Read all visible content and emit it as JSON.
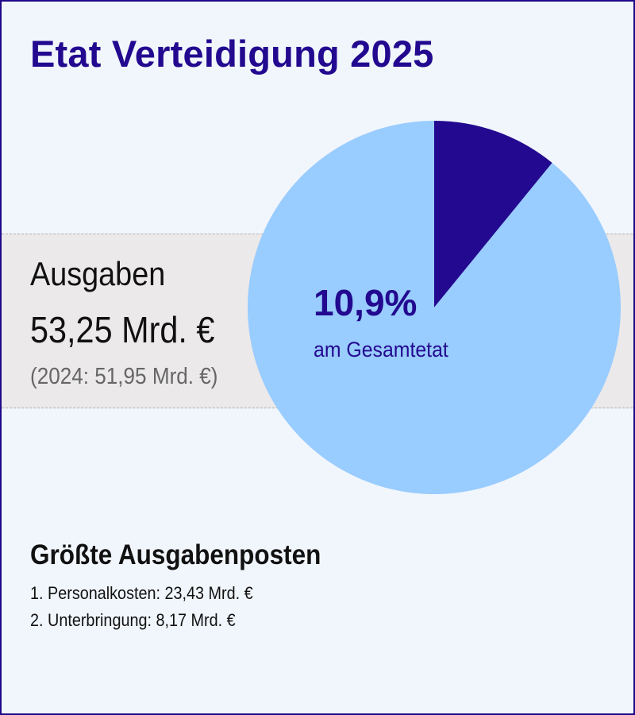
{
  "title": "Etat Verteidigung 2025",
  "colors": {
    "accent": "#22098f",
    "pie_slice": "#22098f",
    "pie_rest": "#99ccff",
    "band": "#ebe9e9",
    "background": "#f1f6fc"
  },
  "expenses": {
    "label": "Ausgaben",
    "value": "53,25 Mrd. €",
    "previous": "(2024: 51,95 Mrd. €)"
  },
  "share": {
    "value": "10,9%",
    "label": "am Gesamtetat"
  },
  "items": {
    "title": "Größte Ausgabenposten",
    "list": [
      "1. Personalkosten: 23,43 Mrd. €",
      "2. Unterbringung: 8,17 Mrd. €"
    ]
  },
  "chart_data": {
    "type": "pie",
    "slices": [
      {
        "value": 10.9,
        "color": "#22098f"
      },
      {
        "value": 89.1,
        "color": "#99ccff"
      }
    ]
  }
}
